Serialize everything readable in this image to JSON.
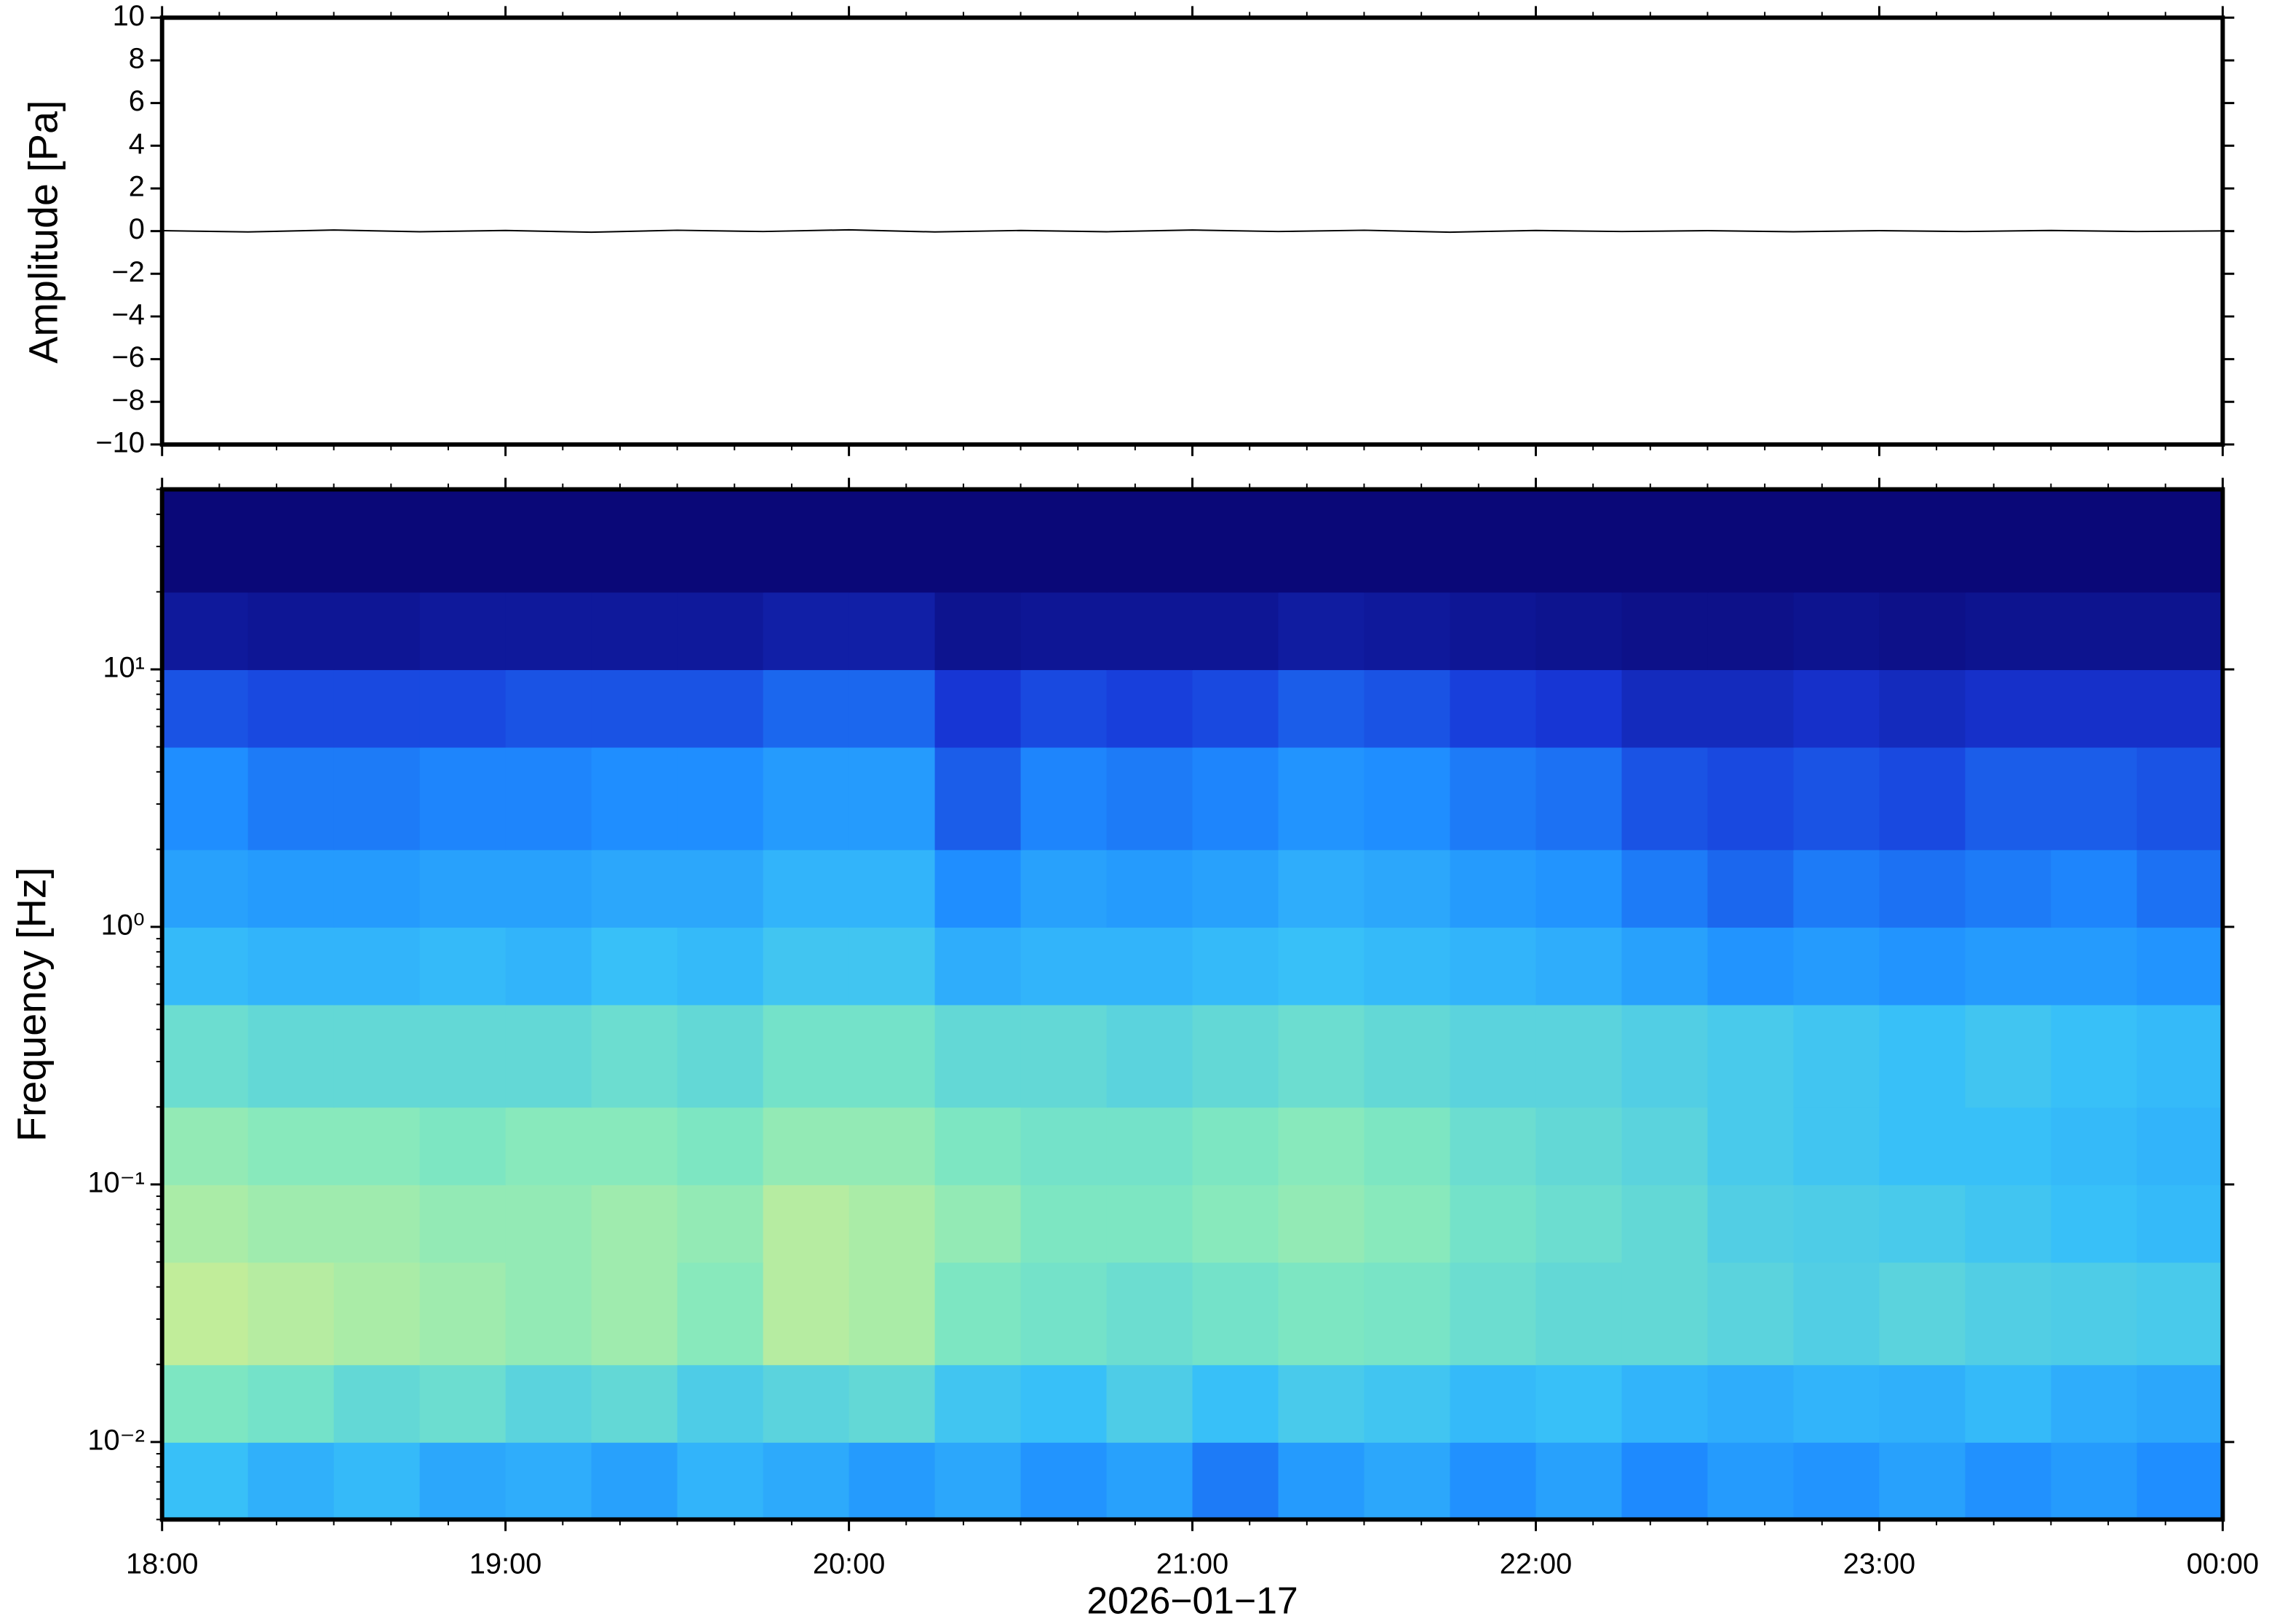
{
  "chart_data": [
    {
      "type": "line",
      "y_label": "Amplitude [Pa]",
      "x": [
        18,
        18.25,
        18.5,
        18.75,
        19,
        19.25,
        19.5,
        19.75,
        20,
        20.25,
        20.5,
        20.75,
        21,
        21.25,
        21.5,
        21.75,
        22,
        22.25,
        22.5,
        22.75,
        23,
        23.25,
        23.5,
        23.75,
        24
      ],
      "series": [
        {
          "name": "Amplitude",
          "color": "#000000",
          "values": [
            0.02,
            -0.04,
            0.05,
            -0.03,
            0.03,
            -0.05,
            0.04,
            -0.02,
            0.06,
            -0.04,
            0.03,
            -0.03,
            0.05,
            -0.02,
            0.04,
            -0.05,
            0.03,
            -0.02,
            0.02,
            -0.03,
            0.02,
            -0.02,
            0.03,
            -0.02,
            0.01
          ]
        }
      ],
      "xlim": [
        18,
        24
      ],
      "ylim": [
        -10,
        10
      ],
      "yticks": [
        {
          "value": -10,
          "label": "−10"
        },
        {
          "value": -8,
          "label": "−8"
        },
        {
          "value": -6,
          "label": "−6"
        },
        {
          "value": -4,
          "label": "−4"
        },
        {
          "value": -2,
          "label": "−2"
        },
        0,
        2,
        4,
        6,
        8,
        10
      ]
    },
    {
      "type": "heatmap",
      "y_label": "Frequency [Hz]",
      "x_label": "2026−01−17",
      "x_edges": [
        18,
        18.25,
        18.5,
        18.75,
        19,
        19.25,
        19.5,
        19.75,
        20,
        20.25,
        20.5,
        20.75,
        21,
        21.25,
        21.5,
        21.75,
        22,
        22.25,
        22.5,
        22.75,
        23,
        23.25,
        23.5,
        23.75,
        24
      ],
      "y_edges": [
        0.005,
        0.01,
        0.02,
        0.05,
        0.1,
        0.2,
        0.5,
        1,
        2,
        5,
        10,
        20,
        50
      ],
      "z": [
        [
          0.5,
          0.45,
          0.48,
          0.42,
          0.44,
          0.4,
          0.46,
          0.43,
          0.38,
          0.42,
          0.36,
          0.4,
          0.3,
          0.38,
          0.42,
          0.35,
          0.4,
          0.33,
          0.38,
          0.36,
          0.4,
          0.35,
          0.38,
          0.34
        ],
        [
          0.66,
          0.64,
          0.6,
          0.62,
          0.58,
          0.6,
          0.55,
          0.58,
          0.6,
          0.52,
          0.5,
          0.55,
          0.5,
          0.54,
          0.52,
          0.48,
          0.5,
          0.46,
          0.44,
          0.46,
          0.45,
          0.48,
          0.44,
          0.42
        ],
        [
          0.78,
          0.76,
          0.74,
          0.72,
          0.7,
          0.72,
          0.68,
          0.76,
          0.74,
          0.66,
          0.64,
          0.62,
          0.64,
          0.66,
          0.65,
          0.62,
          0.6,
          0.6,
          0.58,
          0.56,
          0.58,
          0.56,
          0.55,
          0.54
        ],
        [
          0.74,
          0.72,
          0.72,
          0.7,
          0.7,
          0.72,
          0.7,
          0.76,
          0.74,
          0.7,
          0.66,
          0.66,
          0.68,
          0.7,
          0.68,
          0.64,
          0.62,
          0.6,
          0.56,
          0.55,
          0.54,
          0.52,
          0.5,
          0.48
        ],
        [
          0.7,
          0.68,
          0.68,
          0.66,
          0.68,
          0.68,
          0.66,
          0.7,
          0.7,
          0.66,
          0.64,
          0.64,
          0.66,
          0.68,
          0.66,
          0.62,
          0.6,
          0.58,
          0.54,
          0.52,
          0.5,
          0.5,
          0.48,
          0.46
        ],
        [
          0.62,
          0.6,
          0.6,
          0.6,
          0.6,
          0.62,
          0.6,
          0.64,
          0.64,
          0.6,
          0.6,
          0.58,
          0.6,
          0.62,
          0.6,
          0.58,
          0.58,
          0.56,
          0.54,
          0.52,
          0.5,
          0.52,
          0.5,
          0.48
        ],
        [
          0.48,
          0.46,
          0.46,
          0.48,
          0.46,
          0.5,
          0.48,
          0.52,
          0.52,
          0.44,
          0.46,
          0.46,
          0.48,
          0.5,
          0.48,
          0.46,
          0.44,
          0.4,
          0.36,
          0.38,
          0.36,
          0.38,
          0.38,
          0.36
        ],
        [
          0.4,
          0.38,
          0.38,
          0.4,
          0.4,
          0.42,
          0.42,
          0.46,
          0.46,
          0.34,
          0.4,
          0.38,
          0.4,
          0.44,
          0.42,
          0.38,
          0.36,
          0.3,
          0.26,
          0.3,
          0.28,
          0.3,
          0.32,
          0.28
        ],
        [
          0.34,
          0.3,
          0.3,
          0.32,
          0.32,
          0.34,
          0.34,
          0.38,
          0.38,
          0.24,
          0.32,
          0.3,
          0.32,
          0.36,
          0.34,
          0.3,
          0.28,
          0.22,
          0.2,
          0.22,
          0.2,
          0.24,
          0.24,
          0.22
        ],
        [
          0.22,
          0.2,
          0.2,
          0.2,
          0.22,
          0.22,
          0.22,
          0.26,
          0.26,
          0.16,
          0.2,
          0.18,
          0.2,
          0.24,
          0.22,
          0.18,
          0.16,
          0.12,
          0.12,
          0.14,
          0.12,
          0.14,
          0.14,
          0.14
        ],
        [
          0.06,
          0.05,
          0.05,
          0.06,
          0.06,
          0.06,
          0.06,
          0.08,
          0.08,
          0.04,
          0.05,
          0.05,
          0.05,
          0.07,
          0.06,
          0.05,
          0.04,
          0.03,
          0.03,
          0.04,
          0.03,
          0.04,
          0.04,
          0.04
        ],
        [
          0,
          0,
          0,
          0,
          0,
          0,
          0,
          0,
          0,
          0,
          0,
          0,
          0,
          0,
          0,
          0,
          0,
          0,
          0,
          0,
          0,
          0,
          0,
          0
        ]
      ],
      "zlim": [
        0,
        1
      ],
      "colormap": [
        "#0a0878",
        "#1838d8",
        "#1e8cff",
        "#38c0f8",
        "#80e8c0",
        "#e0f088",
        "#f8c070"
      ],
      "xlim": [
        18,
        24
      ],
      "ylim": [
        0.005,
        50
      ],
      "log_y": true,
      "xticks": [
        {
          "value": 18,
          "label": "18:00"
        },
        {
          "value": 19,
          "label": "19:00"
        },
        {
          "value": 20,
          "label": "20:00"
        },
        {
          "value": 21,
          "label": "21:00"
        },
        {
          "value": 22,
          "label": "22:00"
        },
        {
          "value": 23,
          "label": "23:00"
        },
        {
          "value": 24,
          "label": "00:00"
        }
      ],
      "yticks": [
        {
          "value": 0.01,
          "label": "10⁻²"
        },
        {
          "value": 0.1,
          "label": "10⁻¹"
        },
        {
          "value": 1,
          "label": "10⁰"
        },
        {
          "value": 10,
          "label": "10¹"
        }
      ]
    }
  ]
}
